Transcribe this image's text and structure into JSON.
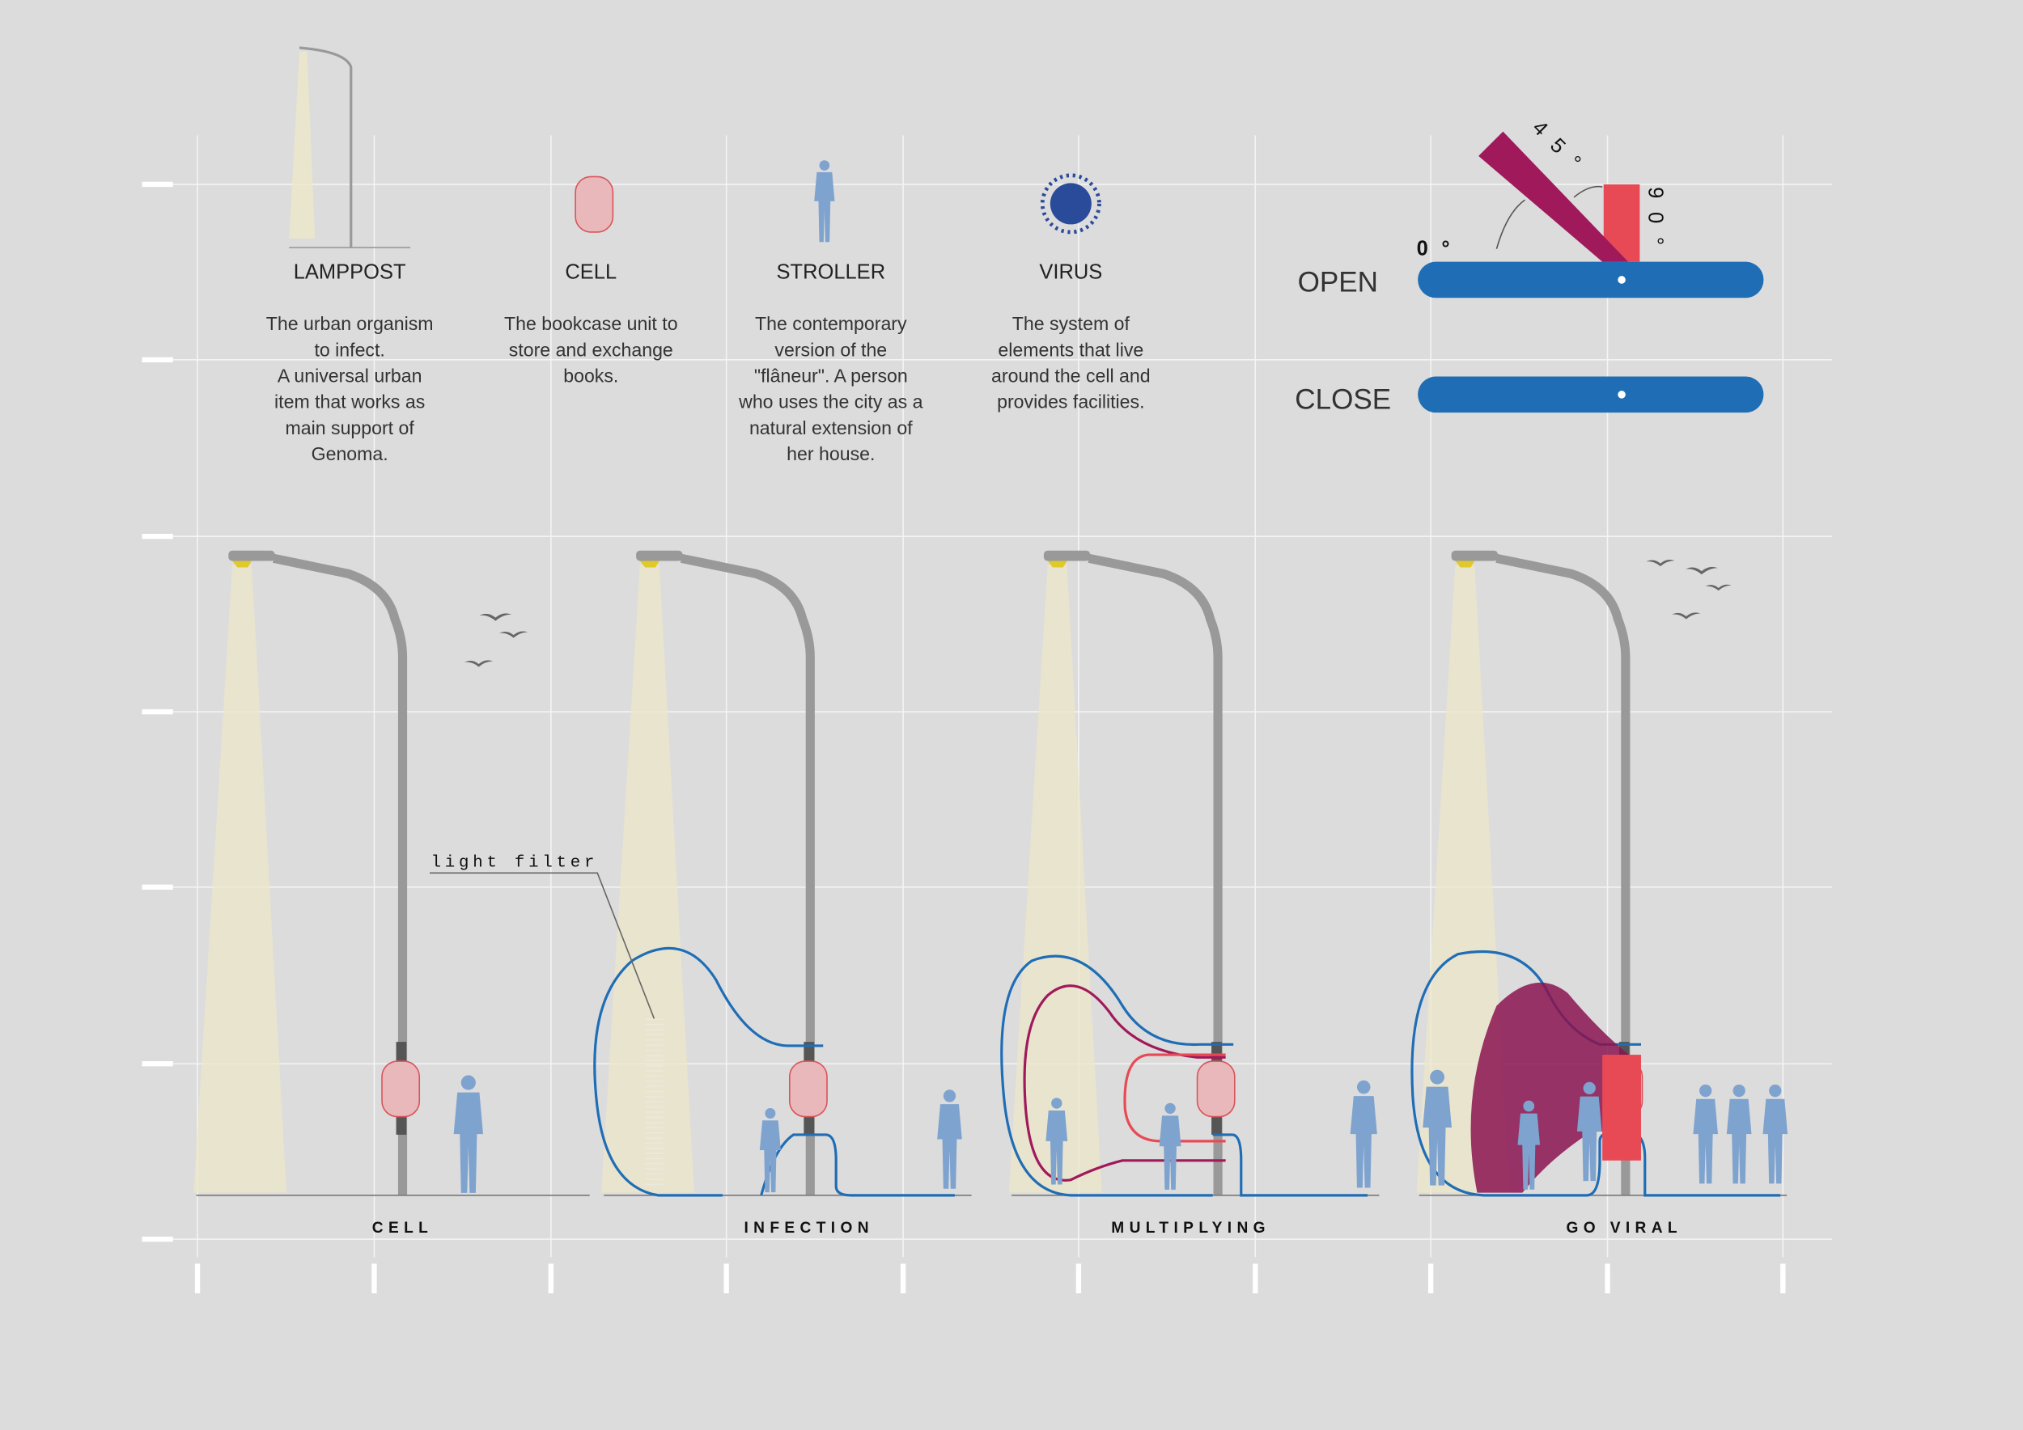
{
  "header": {
    "items": [
      {
        "label": "LAMPPOST",
        "description": [
          "The urban organism",
          "to infect.",
          "A universal urban",
          "item that works as",
          "main support of",
          "Genoma."
        ]
      },
      {
        "label": "CELL",
        "description": [
          "The bookcase unit to",
          "store and exchange",
          "books."
        ]
      },
      {
        "label": "STROLLER",
        "description": [
          "The contemporary",
          "version of the",
          "\"flâneur\". A person",
          "who uses the city as a",
          "natural extension of",
          "her house."
        ]
      },
      {
        "label": "VIRUS",
        "description": [
          "The system of",
          "elements that live",
          "around the cell and",
          "provides facilities."
        ]
      }
    ]
  },
  "mechanism": {
    "angles": [
      "4 5 °",
      "9 0 °",
      "0 °"
    ],
    "states": [
      "OPEN",
      "CLOSE"
    ]
  },
  "annotation": "light filter",
  "stages": [
    "CELL",
    "INFECTION",
    "MULTIPLYING",
    "GO VIRAL"
  ]
}
